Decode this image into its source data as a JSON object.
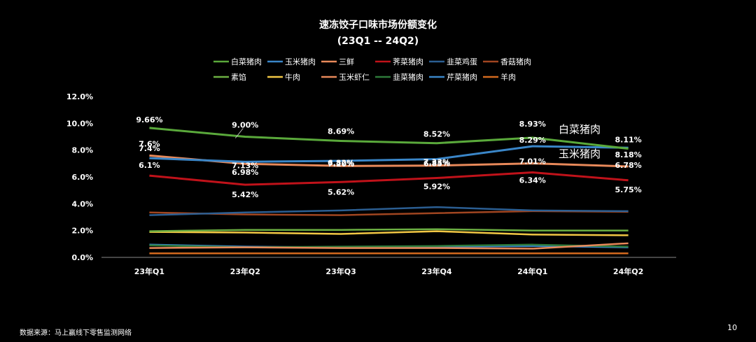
{
  "footer": {
    "source": "数据来源：马上赢线下零售监测网络",
    "page_number": "10"
  },
  "chart_data": {
    "type": "line",
    "title": "速冻饺子口味市场份额变化",
    "subtitle": "(23Q1 -- 24Q2)",
    "categories": [
      "23年Q1",
      "23年Q2",
      "23年Q3",
      "23年Q4",
      "24年Q1",
      "24年Q2"
    ],
    "ylim": [
      0,
      12
    ],
    "yticks": [
      "0.0%",
      "2.0%",
      "4.0%",
      "6.0%",
      "8.0%",
      "10.0%",
      "12.0%"
    ],
    "ytick_values": [
      0,
      2,
      4,
      6,
      8,
      10,
      12
    ],
    "legend_position": "top",
    "series": [
      {
        "name": "白菜猪肉",
        "color": "#5aa93b",
        "values": [
          9.66,
          9.0,
          8.69,
          8.52,
          8.93,
          8.11
        ],
        "labels": [
          "9.66%",
          "9.00%",
          "8.69%",
          "8.52%",
          "8.93%",
          "8.11%"
        ]
      },
      {
        "name": "玉米猪肉",
        "color": "#3a86c8",
        "values": [
          7.4,
          7.13,
          7.2,
          7.33,
          8.29,
          8.18
        ],
        "labels": [
          "7.4%",
          "7.13%",
          "7.20%",
          "7.33%",
          "8.29%",
          "8.18%"
        ]
      },
      {
        "name": "三鲜",
        "color": "#e8895a",
        "values": [
          7.6,
          6.98,
          6.82,
          6.85,
          7.01,
          6.78
        ],
        "labels": [
          "7.6%",
          "6.98%",
          "6.82%",
          "6.85%",
          "7.01%",
          "6.78%"
        ]
      },
      {
        "name": "荠菜猪肉",
        "color": "#c0121a",
        "values": [
          6.1,
          5.42,
          5.62,
          5.92,
          6.34,
          5.75
        ],
        "labels": [
          "6.1%",
          "5.42%",
          "5.62%",
          "5.92%",
          "6.34%",
          "5.75%"
        ]
      },
      {
        "name": "韭菜鸡蛋",
        "color": "#2b5e92",
        "values": [
          3.15,
          3.35,
          3.5,
          3.75,
          3.5,
          3.45
        ]
      },
      {
        "name": "香菇猪肉",
        "color": "#a04520",
        "values": [
          3.35,
          3.2,
          3.15,
          3.3,
          3.45,
          3.4
        ]
      },
      {
        "name": "素馅",
        "color": "#6cb043",
        "values": [
          1.95,
          2.05,
          2.05,
          2.1,
          2.0,
          2.0
        ]
      },
      {
        "name": "牛肉",
        "color": "#f2c744",
        "values": [
          1.9,
          1.85,
          1.75,
          1.95,
          1.7,
          1.65
        ]
      },
      {
        "name": "玉米虾仁",
        "color": "#e8895a",
        "values": [
          0.7,
          0.75,
          0.7,
          0.7,
          0.65,
          1.05
        ]
      },
      {
        "name": "韭菜猪肉",
        "color": "#2e7a3a",
        "values": [
          0.9,
          0.75,
          0.8,
          0.85,
          0.95,
          0.8
        ]
      },
      {
        "name": "芹菜猪肉",
        "color": "#3a86c8",
        "values": [
          0.95,
          0.8,
          0.75,
          0.8,
          0.85,
          0.75
        ]
      },
      {
        "name": "羊肉",
        "color": "#d2691e",
        "values": [
          0.3,
          0.3,
          0.3,
          0.3,
          0.3,
          0.3
        ]
      }
    ],
    "annotations": [
      {
        "text": "白菜猪肉",
        "series": "白菜猪肉"
      },
      {
        "text": "玉米猪肉",
        "series": "玉米猪肉"
      }
    ]
  }
}
